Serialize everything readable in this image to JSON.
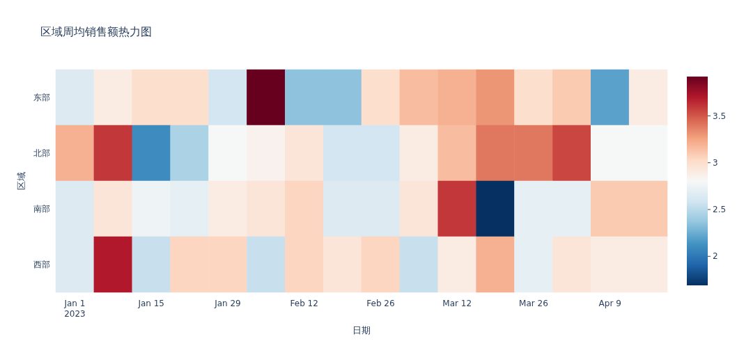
{
  "chart_data": {
    "type": "heatmap",
    "title": "区域周均销售额热力图",
    "xlabel": "日期",
    "ylabel": "区域",
    "categories": [
      "Jan 1\n2023",
      null,
      "Jan 15",
      null,
      "Jan 29",
      null,
      "Feb 12",
      null,
      "Feb 26",
      null,
      "Mar 12",
      null,
      "Mar 26",
      null,
      "Apr 9",
      null
    ],
    "y_categories": [
      "东部",
      "北部",
      "南部",
      "西部"
    ],
    "cells": [
      [
        2.65,
        2.9,
        3.0,
        3.0,
        2.6,
        3.92,
        2.35,
        2.35,
        3.0,
        3.15,
        3.2,
        3.3,
        3.0,
        3.1,
        2.2,
        2.9
      ],
      [
        3.2,
        3.6,
        2.1,
        2.45,
        2.8,
        2.85,
        2.95,
        2.6,
        2.6,
        2.9,
        3.15,
        3.4,
        3.4,
        3.55,
        2.8,
        2.8
      ],
      [
        2.65,
        2.95,
        2.75,
        2.7,
        2.9,
        2.95,
        3.05,
        2.65,
        2.65,
        2.95,
        3.6,
        1.69,
        2.7,
        2.7,
        3.1,
        3.1
      ],
      [
        2.65,
        3.7,
        2.55,
        3.05,
        3.05,
        2.55,
        3.05,
        2.95,
        3.05,
        2.55,
        2.9,
        3.2,
        2.7,
        2.95,
        2.9,
        2.9
      ]
    ],
    "clim": [
      1.69,
      3.92
    ],
    "cticks": [
      2,
      2.5,
      3,
      3.5
    ]
  }
}
